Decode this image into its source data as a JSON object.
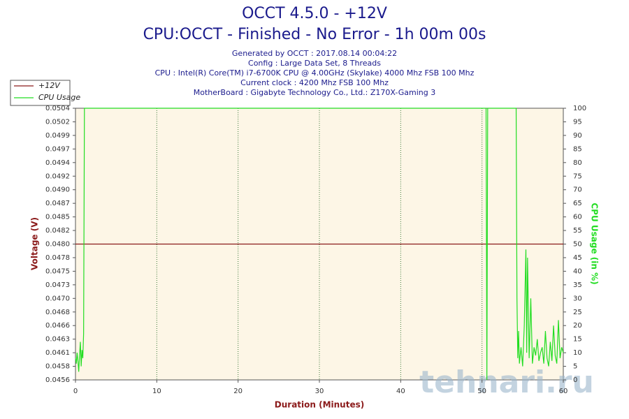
{
  "chart_data": {
    "type": "line",
    "title": "OCCT 4.5.0 - +12V",
    "subtitle": "CPU:OCCT - Finished - No Error - 1h 00m 00s",
    "info": [
      "Generated by OCCT : 2017.08.14 00:04:22",
      "Config : Large Data Set, 8 Threads",
      "CPU : Intel(R) Core(TM) i7-6700K CPU @ 4.00GHz (Skylake) 4000 Mhz FSB 100 Mhz",
      "Current clock : 4200 Mhz FSB 100 Mhz",
      "MotherBoard : Gigabyte Technology Co., Ltd.: Z170X-Gaming 3"
    ],
    "xlabel": "Duration (Minutes)",
    "ylabel": "Voltage (V)",
    "y2label": "CPU Usage (in %)",
    "watermark": "tehnari.ru",
    "xlim": [
      0,
      60
    ],
    "xticks": [
      0,
      10,
      20,
      30,
      40,
      50,
      60
    ],
    "ylim": [
      0.0456,
      0.0504
    ],
    "yticks": [
      0.0456,
      {
        "value": 0.04584,
        "label": "0.0458"
      },
      {
        "value": 0.04608,
        "label": "0.0461"
      },
      {
        "value": 0.04632,
        "label": "0.0463"
      },
      {
        "value": 0.04656,
        "label": "0.0466"
      },
      0.0468,
      {
        "value": 0.04704,
        "label": "0.0470"
      },
      {
        "value": 0.04728,
        "label": "0.0473"
      },
      {
        "value": 0.04752,
        "label": "0.0475"
      },
      {
        "value": 0.04776,
        "label": "0.0478"
      },
      {
        "value": 0.048,
        "label": "0.0480"
      },
      {
        "value": 0.04824,
        "label": "0.0482"
      },
      {
        "value": 0.04848,
        "label": "0.0485"
      },
      {
        "value": 0.04872,
        "label": "0.0487"
      },
      {
        "value": 0.04896,
        "label": "0.0490"
      },
      0.0492,
      {
        "value": 0.04944,
        "label": "0.0494"
      },
      {
        "value": 0.04968,
        "label": "0.0497"
      },
      {
        "value": 0.04992,
        "label": "0.0499"
      },
      {
        "value": 0.05016,
        "label": "0.0502"
      },
      0.0504
    ],
    "y2lim": [
      0,
      100
    ],
    "y2ticks": [
      0,
      5,
      10,
      15,
      20,
      25,
      30,
      35,
      40,
      45,
      50,
      55,
      60,
      65,
      70,
      75,
      80,
      85,
      90,
      95,
      100
    ],
    "grid": true,
    "legend": "top-left",
    "series": [
      {
        "name": "+12V",
        "color": "#8b1a1a",
        "x": [
          0,
          60
        ],
        "values": [
          0.048,
          0.048
        ]
      },
      {
        "name": "CPU Usage",
        "color": "#22dd22",
        "axis": "y2",
        "x": [
          0,
          0.1,
          0.2,
          0.3,
          0.4,
          0.5,
          0.6,
          0.7,
          0.8,
          0.9,
          1.0,
          1.1,
          50.5,
          50.6,
          50.7,
          54.2,
          54.3,
          54.4,
          54.5,
          54.6,
          54.8,
          55.0,
          55.2,
          55.4,
          55.5,
          55.6,
          55.8,
          56.0,
          56.2,
          56.4,
          56.6,
          56.8,
          57.0,
          57.2,
          57.4,
          57.6,
          57.8,
          58.0,
          58.2,
          58.4,
          58.6,
          58.8,
          59.0,
          59.2,
          59.4,
          59.6,
          59.8,
          60
        ],
        "values": [
          8,
          6,
          10,
          7,
          3,
          9,
          14,
          5,
          11,
          8,
          17,
          100,
          100,
          0,
          100,
          100,
          30,
          8,
          18,
          6,
          12,
          5,
          20,
          48,
          10,
          45,
          8,
          30,
          6,
          12,
          9,
          15,
          7,
          10,
          12,
          6,
          18,
          8,
          5,
          14,
          7,
          20,
          9,
          6,
          22,
          8,
          12,
          10
        ]
      }
    ]
  }
}
